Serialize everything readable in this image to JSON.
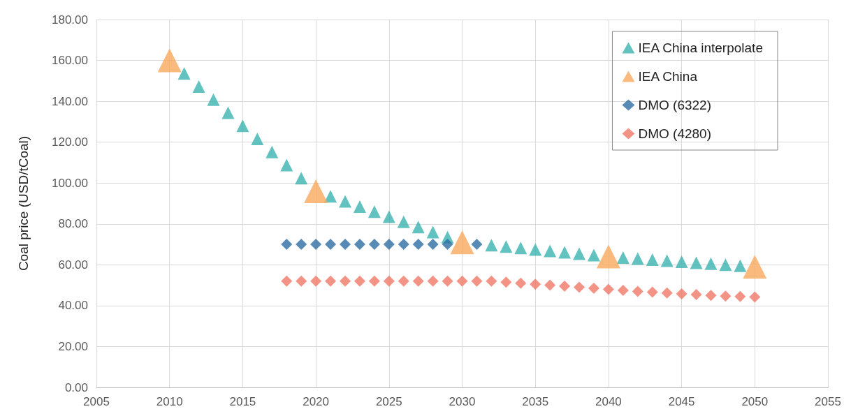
{
  "chart_data": {
    "type": "scatter",
    "ylabel": "Coal price (USD/tCoal)",
    "xlim": [
      2005,
      2055
    ],
    "xticks": [
      2005,
      2010,
      2015,
      2020,
      2025,
      2030,
      2035,
      2040,
      2045,
      2050,
      2055
    ],
    "ylim": [
      0,
      180
    ],
    "yticks": [
      {
        "value": 0,
        "label": "0.00"
      },
      {
        "value": 20,
        "label": "20.00"
      },
      {
        "value": 40,
        "label": "40.00"
      },
      {
        "value": 60,
        "label": "60.00"
      },
      {
        "value": 80,
        "label": "80.00"
      },
      {
        "value": 100,
        "label": "100.00"
      },
      {
        "value": 120,
        "label": "120.00"
      },
      {
        "value": 140,
        "label": "140.00"
      },
      {
        "value": 160,
        "label": "160.00"
      },
      {
        "value": 180,
        "label": "180.00"
      }
    ],
    "grid": true,
    "legend": "top right",
    "series": [
      {
        "name": "IEA China interpolate",
        "color": "#3bb3b0",
        "marker": "triangle",
        "x": [
          2011,
          2012,
          2013,
          2014,
          2015,
          2016,
          2017,
          2018,
          2019,
          2021,
          2022,
          2023,
          2024,
          2025,
          2026,
          2027,
          2028,
          2029,
          2031,
          2032,
          2033,
          2034,
          2035,
          2036,
          2037,
          2038,
          2039,
          2041,
          2042,
          2043,
          2044,
          2045,
          2046,
          2047,
          2048,
          2049
        ],
        "values": [
          153.6,
          147.2,
          140.8,
          134.4,
          128,
          121.6,
          115.2,
          108.8,
          102.4,
          93.5,
          91,
          88.5,
          86,
          83.5,
          81,
          78.5,
          76,
          73.5,
          null,
          69.6,
          68.9,
          68.2,
          67.5,
          66.8,
          66.1,
          65.4,
          64.7,
          63.5,
          63,
          62.5,
          62,
          61.5,
          61,
          60.5,
          60,
          59.5
        ]
      },
      {
        "name": "IEA China",
        "color": "#f9a95c",
        "marker": "triangle",
        "x": [
          2010,
          2020,
          2030,
          2040,
          2050
        ],
        "values": [
          160,
          96,
          71,
          64,
          59
        ]
      },
      {
        "name": "DMO (6322)",
        "color": "#2e6da4",
        "marker": "diamond",
        "x": [
          2018,
          2019,
          2020,
          2021,
          2022,
          2023,
          2024,
          2025,
          2026,
          2027,
          2028,
          2029,
          2030,
          2031
        ],
        "values": [
          70,
          70,
          70,
          70,
          70,
          70,
          70,
          70,
          70,
          70,
          70,
          70,
          null,
          70
        ]
      },
      {
        "name": "DMO (4280)",
        "color": "#f07868",
        "marker": "diamond",
        "x": [
          2018,
          2019,
          2020,
          2021,
          2022,
          2023,
          2024,
          2025,
          2026,
          2027,
          2028,
          2029,
          2030,
          2031,
          2032,
          2033,
          2034,
          2035,
          2036,
          2037,
          2038,
          2039,
          2040,
          2041,
          2042,
          2043,
          2044,
          2045,
          2046,
          2047,
          2048,
          2049,
          2050
        ],
        "values": [
          52,
          52,
          52,
          52,
          52,
          52,
          52,
          52,
          52,
          52,
          52,
          52,
          52,
          52,
          52,
          51.5,
          51,
          50.5,
          50,
          49.5,
          49,
          48.5,
          48,
          47.5,
          47,
          46.6,
          46.2,
          45.8,
          45.4,
          45,
          44.7,
          44.5,
          44.2
        ]
      }
    ]
  }
}
